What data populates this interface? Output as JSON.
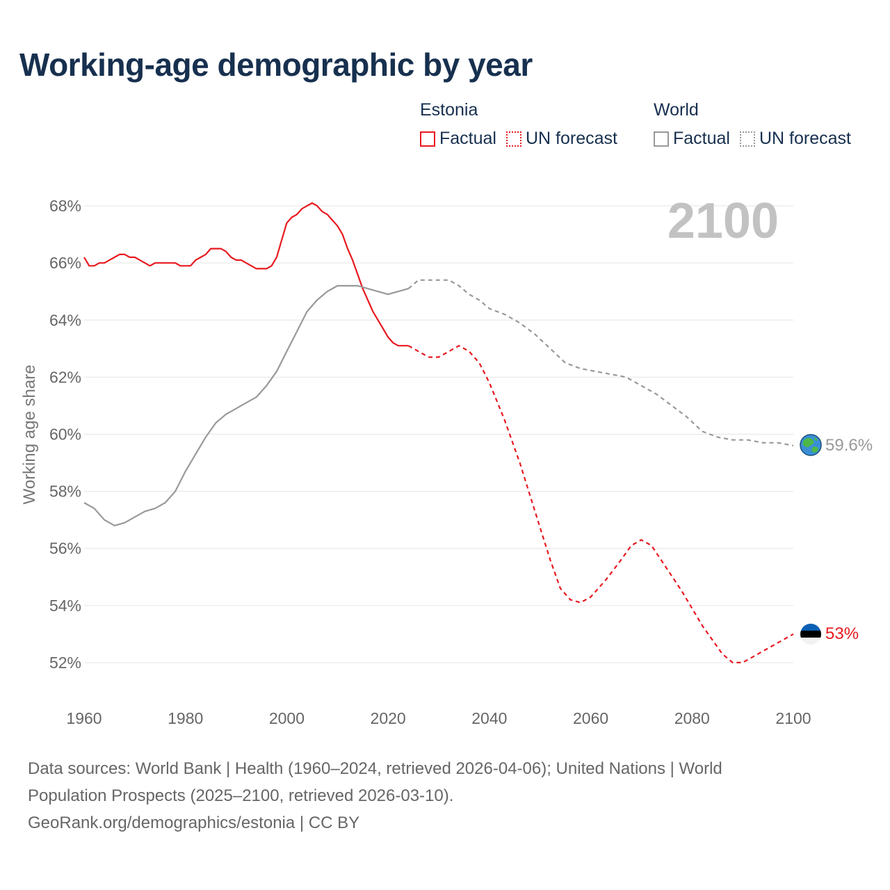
{
  "title": "Working-age demographic by year",
  "legend": {
    "groups": [
      {
        "name": "Estonia",
        "factual_label": "Factual",
        "forecast_label": "UN forecast",
        "color": "#e8191f"
      },
      {
        "name": "World",
        "factual_label": "Factual",
        "forecast_label": "UN forecast",
        "color": "#999999"
      }
    ]
  },
  "source": {
    "line1": "Data sources: World Bank | Health (1960–2024, retrieved 2026-04-06); United Nations | World",
    "line2": "Population Prospects (2025–2100, retrieved 2026-03-10).",
    "line3": "GeoRank.org/demographics/estonia | CC BY"
  },
  "chart_data": {
    "type": "line",
    "title": "Working-age demographic by year",
    "xlabel": "",
    "ylabel": "Working age share",
    "year_watermark": "2100",
    "xlim": [
      1960,
      2100
    ],
    "ylim": [
      51,
      69
    ],
    "x_ticks": [
      1960,
      1980,
      2000,
      2020,
      2040,
      2060,
      2080,
      2100
    ],
    "x_tick_labels": [
      "1960",
      "1980",
      "2000",
      "2020",
      "2040",
      "2060",
      "2080",
      "2100"
    ],
    "y_ticks": [
      52,
      54,
      56,
      58,
      60,
      62,
      64,
      66,
      68
    ],
    "y_tick_labels": [
      "52%",
      "54%",
      "56%",
      "58%",
      "60%",
      "62%",
      "64%",
      "66%",
      "68%"
    ],
    "grid": true,
    "legend_position": "top-right",
    "series": [
      {
        "name": "Estonia",
        "segment": "Factual",
        "color": "#e8191f",
        "dash": "none",
        "x": [
          1960,
          1961,
          1962,
          1963,
          1964,
          1965,
          1966,
          1967,
          1968,
          1969,
          1970,
          1971,
          1972,
          1973,
          1974,
          1975,
          1976,
          1977,
          1978,
          1979,
          1980,
          1981,
          1982,
          1983,
          1984,
          1985,
          1986,
          1987,
          1988,
          1989,
          1990,
          1991,
          1992,
          1993,
          1994,
          1995,
          1996,
          1997,
          1998,
          1999,
          2000,
          2001,
          2002,
          2003,
          2004,
          2005,
          2006,
          2007,
          2008,
          2009,
          2010,
          2011,
          2012,
          2013,
          2014,
          2015,
          2016,
          2017,
          2018,
          2019,
          2020,
          2021,
          2022,
          2023,
          2024
        ],
        "y": [
          66.2,
          65.9,
          65.9,
          66.0,
          66.0,
          66.1,
          66.2,
          66.3,
          66.3,
          66.2,
          66.2,
          66.1,
          66.0,
          65.9,
          66.0,
          66.0,
          66.0,
          66.0,
          66.0,
          65.9,
          65.9,
          65.9,
          66.1,
          66.2,
          66.3,
          66.5,
          66.5,
          66.5,
          66.4,
          66.2,
          66.1,
          66.1,
          66.0,
          65.9,
          65.8,
          65.8,
          65.8,
          65.9,
          66.2,
          66.8,
          67.4,
          67.6,
          67.7,
          67.9,
          68.0,
          68.1,
          68.0,
          67.8,
          67.7,
          67.5,
          67.3,
          67.0,
          66.5,
          66.1,
          65.6,
          65.1,
          64.7,
          64.3,
          64.0,
          63.7,
          63.4,
          63.2,
          63.1,
          63.1,
          63.1
        ]
      },
      {
        "name": "Estonia",
        "segment": "UN forecast",
        "color": "#e8191f",
        "dash": "6,5",
        "x": [
          2024,
          2026,
          2028,
          2030,
          2032,
          2034,
          2036,
          2038,
          2040,
          2043,
          2046,
          2049,
          2052,
          2054,
          2056,
          2058,
          2060,
          2063,
          2066,
          2068,
          2070,
          2072,
          2075,
          2078,
          2080,
          2082,
          2084,
          2086,
          2088,
          2090,
          2093,
          2096,
          2099,
          2100
        ],
        "y": [
          63.1,
          62.9,
          62.7,
          62.7,
          62.9,
          63.1,
          62.9,
          62.5,
          61.8,
          60.5,
          59.0,
          57.3,
          55.6,
          54.6,
          54.2,
          54.1,
          54.3,
          54.9,
          55.6,
          56.1,
          56.3,
          56.1,
          55.3,
          54.5,
          53.9,
          53.3,
          52.8,
          52.3,
          52.0,
          52.0,
          52.3,
          52.6,
          52.9,
          53.0
        ]
      },
      {
        "name": "World",
        "segment": "Factual",
        "color": "#999999",
        "dash": "none",
        "x": [
          1960,
          1962,
          1964,
          1966,
          1968,
          1970,
          1972,
          1974,
          1976,
          1978,
          1980,
          1982,
          1984,
          1986,
          1988,
          1990,
          1992,
          1994,
          1996,
          1998,
          2000,
          2002,
          2004,
          2006,
          2008,
          2010,
          2012,
          2014,
          2016,
          2018,
          2020,
          2022,
          2024
        ],
        "y": [
          57.6,
          57.4,
          57.0,
          56.8,
          56.9,
          57.1,
          57.3,
          57.4,
          57.6,
          58.0,
          58.7,
          59.3,
          59.9,
          60.4,
          60.7,
          60.9,
          61.1,
          61.3,
          61.7,
          62.2,
          62.9,
          63.6,
          64.3,
          64.7,
          65.0,
          65.2,
          65.2,
          65.2,
          65.1,
          65.0,
          64.9,
          65.0,
          65.1
        ]
      },
      {
        "name": "World",
        "segment": "UN forecast",
        "color": "#999999",
        "dash": "6,5",
        "x": [
          2024,
          2026,
          2028,
          2030,
          2032,
          2034,
          2036,
          2038,
          2040,
          2043,
          2046,
          2049,
          2052,
          2055,
          2058,
          2061,
          2064,
          2067,
          2070,
          2073,
          2076,
          2079,
          2082,
          2085,
          2088,
          2091,
          2094,
          2097,
          2100
        ],
        "y": [
          65.1,
          65.4,
          65.4,
          65.4,
          65.4,
          65.2,
          64.9,
          64.7,
          64.4,
          64.2,
          63.9,
          63.5,
          63.0,
          62.5,
          62.3,
          62.2,
          62.1,
          62.0,
          61.7,
          61.4,
          61.0,
          60.6,
          60.1,
          59.9,
          59.8,
          59.8,
          59.7,
          59.7,
          59.6
        ]
      }
    ],
    "end_labels": [
      {
        "name": "World",
        "value": 59.6,
        "label": "59.6%",
        "color": "#999999"
      },
      {
        "name": "Estonia",
        "value": 53.0,
        "label": "53%",
        "color": "#e8191f"
      }
    ]
  }
}
